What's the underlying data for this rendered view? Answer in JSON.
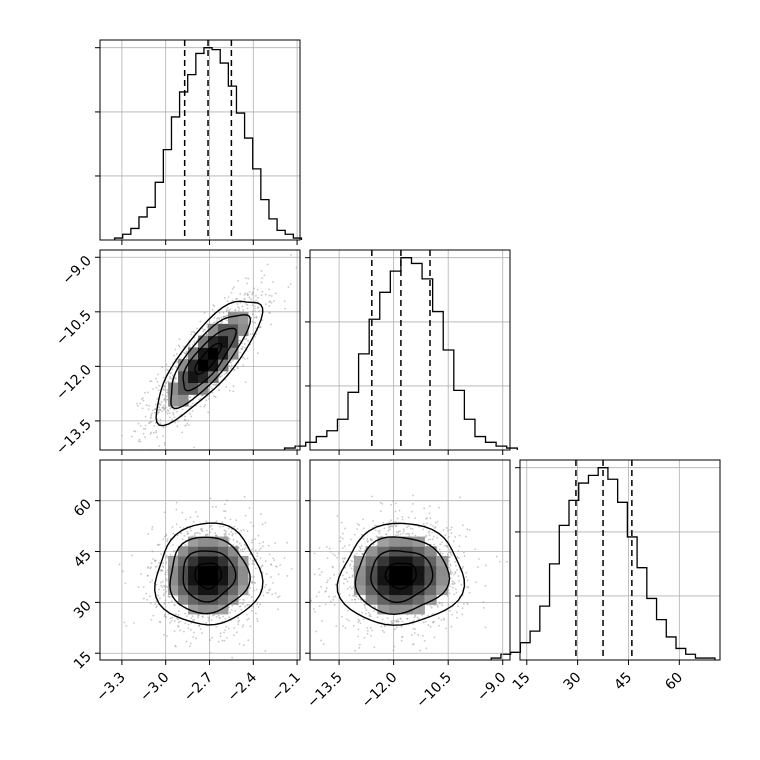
{
  "chart_data": {
    "type": "corner",
    "grid": true,
    "quantiles": [
      0.16,
      0.5,
      0.84
    ],
    "parameters": [
      {
        "axis_range": [
          -3.45,
          -2.08
        ],
        "ticks": [
          -3.3,
          -3.0,
          -2.7,
          -2.4,
          -2.1
        ],
        "tick_labels": [
          "−3.3",
          "−3.0",
          "−2.7",
          "−2.4",
          "−2.1"
        ],
        "marginal": {
          "quantile_values": [
            -2.87,
            -2.71,
            -2.55
          ],
          "hist_counts": [
            1,
            3,
            6,
            12,
            17,
            30,
            47,
            64,
            77,
            86,
            97,
            100,
            99,
            92,
            80,
            66,
            53,
            37,
            21,
            11,
            5,
            3,
            1
          ]
        }
      },
      {
        "axis_range": [
          -14.3,
          -8.8
        ],
        "ticks": [
          -13.5,
          -12.0,
          -10.5,
          -9.0
        ],
        "tick_labels": [
          "−13.5",
          "−12.0",
          "−10.5",
          "−9.0"
        ],
        "marginal": {
          "quantile_values": [
            -12.6,
            -11.8,
            -11.0
          ],
          "hist_counts": [
            1,
            2,
            4,
            7,
            10,
            16,
            30,
            50,
            68,
            82,
            93,
            100,
            97,
            89,
            72,
            52,
            31,
            16,
            7,
            4,
            2,
            1
          ]
        }
      },
      {
        "axis_range": [
          13,
          72
        ],
        "ticks": [
          15,
          30,
          45,
          60
        ],
        "tick_labels": [
          "15",
          "30",
          "45",
          "60"
        ],
        "marginal": {
          "quantile_values": [
            29.5,
            37.5,
            46.0
          ],
          "hist_counts": [
            1,
            3,
            4,
            9,
            15,
            28,
            50,
            70,
            83,
            92,
            96,
            100,
            94,
            82,
            64,
            48,
            32,
            21,
            12,
            6,
            3,
            1,
            1
          ]
        }
      }
    ],
    "joint": [
      {
        "x_param": 0,
        "y_param": 1,
        "center": [
          -2.71,
          -11.8
        ],
        "sigma": [
          0.18,
          0.85
        ],
        "correlation": 0.8
      },
      {
        "x_param": 0,
        "y_param": 2,
        "center": [
          -2.71,
          38.0
        ],
        "sigma": [
          0.18,
          7.5
        ],
        "correlation": 0.02
      },
      {
        "x_param": 1,
        "y_param": 2,
        "center": [
          -11.8,
          38.0
        ],
        "sigma": [
          0.85,
          7.5
        ],
        "correlation": 0.05
      }
    ]
  }
}
